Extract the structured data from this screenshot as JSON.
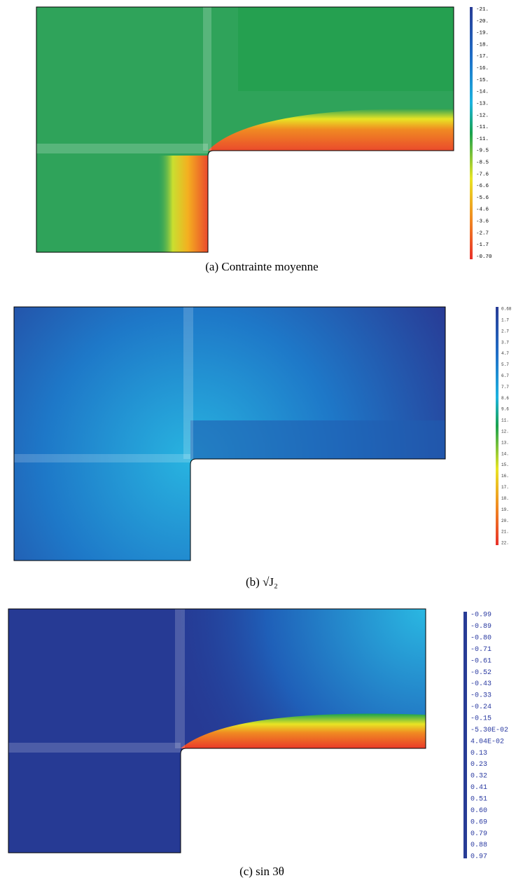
{
  "panels": [
    {
      "caption": "(a)  Contrainte moyenne",
      "colorbar": {
        "labels": [
          "-21.",
          "-20.",
          "-19.",
          "-18.",
          "-17.",
          "-16.",
          "-15.",
          "-14.",
          "-13.",
          "-12.",
          "-11.",
          "-11.",
          "-9.5",
          "-8.5",
          "-7.6",
          "-6.6",
          "-5.6",
          "-4.6",
          "-3.6",
          "-2.7",
          "-1.7",
          "-0.70"
        ]
      }
    },
    {
      "caption": "(b)  √J₂",
      "colorbar": {
        "labels": [
          "0.68",
          "1.7",
          "2.7",
          "3.7",
          "4.7",
          "5.7",
          "6.7",
          "7.7",
          "8.6",
          "9.6",
          "11.",
          "12.",
          "13.",
          "14.",
          "15.",
          "16.",
          "17.",
          "18.",
          "19.",
          "20.",
          "21.",
          "22."
        ]
      }
    },
    {
      "caption": "(c)  sin 3θ",
      "colorbar": {
        "labels": [
          "-0.99",
          "-0.89",
          "-0.80",
          "-0.71",
          "-0.61",
          "-0.52",
          "-0.43",
          "-0.33",
          "-0.24",
          "-0.15",
          "-5.30E-02",
          "4.04E-02",
          "0.13",
          "0.23",
          "0.32",
          "0.41",
          "0.51",
          "0.60",
          "0.69",
          "0.79",
          "0.88",
          "0.97"
        ]
      }
    }
  ]
}
